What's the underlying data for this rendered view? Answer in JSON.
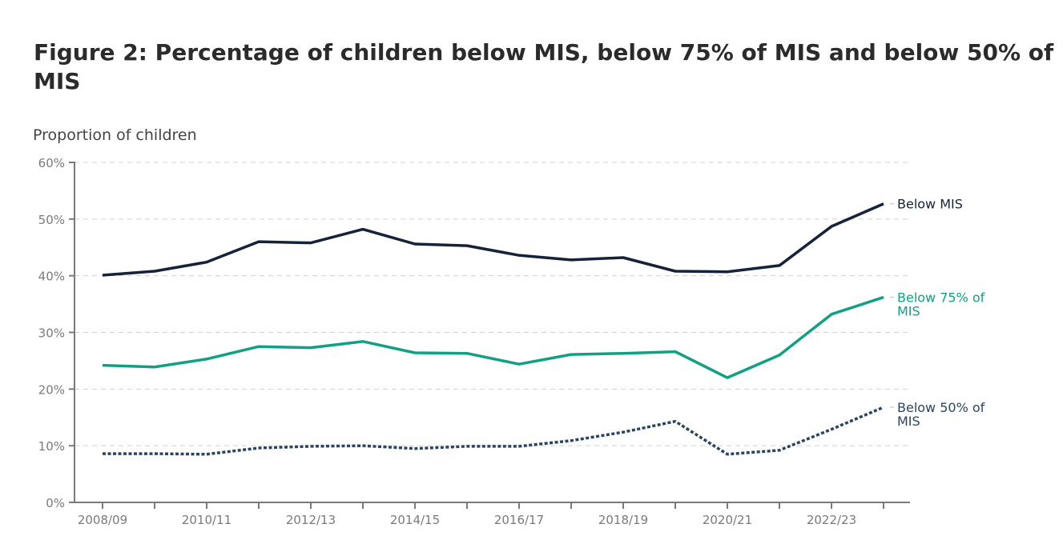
{
  "title": "Figure 2: Percentage of children below MIS, below 75% of MIS and below 50% of MIS",
  "chart_data": {
    "type": "line",
    "title": "Figure 2: Percentage of children below MIS, below 75% of MIS and below 50% of MIS",
    "xlabel": "",
    "ylabel": "Proportion of children",
    "ylim": [
      0,
      60
    ],
    "yticks": [
      0,
      10,
      20,
      30,
      40,
      50,
      60
    ],
    "ytick_labels": [
      "0%",
      "10%",
      "20%",
      "30%",
      "40%",
      "50%",
      "60%"
    ],
    "grid": "horizontal-dashed",
    "legend": "direct-labels-right",
    "x": [
      "2008/09",
      "2009/10",
      "2010/11",
      "2011/12",
      "2012/13",
      "2013/14",
      "2014/15",
      "2015/16",
      "2016/17",
      "2017/18",
      "2018/19",
      "2019/20",
      "2020/21",
      "2021/22",
      "2022/23",
      "2023/24"
    ],
    "xtick_labels": [
      "2008/09",
      "",
      "2010/11",
      "",
      "2012/13",
      "",
      "2014/15",
      "",
      "2016/17",
      "",
      "2018/19",
      "",
      "2020/21",
      "",
      "2022/23",
      ""
    ],
    "series": [
      {
        "name": "Below MIS",
        "label_lines": [
          "Below MIS"
        ],
        "color": "#15233a",
        "style": "solid",
        "values": [
          40.1,
          40.8,
          42.4,
          46.0,
          45.8,
          48.2,
          45.6,
          45.3,
          43.6,
          42.8,
          43.2,
          40.8,
          40.7,
          41.8,
          48.7,
          52.7
        ]
      },
      {
        "name": "Below 75% of MIS",
        "label_lines": [
          "Below 75% of",
          "MIS"
        ],
        "color": "#12a085",
        "style": "solid",
        "values": [
          24.2,
          23.9,
          25.3,
          27.5,
          27.3,
          28.4,
          26.4,
          26.3,
          24.4,
          26.1,
          26.3,
          26.6,
          22.0,
          26.0,
          33.2,
          36.2
        ]
      },
      {
        "name": "Below 50% of MIS",
        "label_lines": [
          "Below 50% of",
          "MIS"
        ],
        "color": "#2b4466",
        "style": "dotted",
        "values": [
          8.6,
          8.6,
          8.5,
          9.6,
          9.9,
          10.0,
          9.5,
          9.9,
          9.9,
          10.9,
          12.4,
          14.3,
          8.5,
          9.2,
          12.9,
          16.8
        ]
      }
    ]
  }
}
